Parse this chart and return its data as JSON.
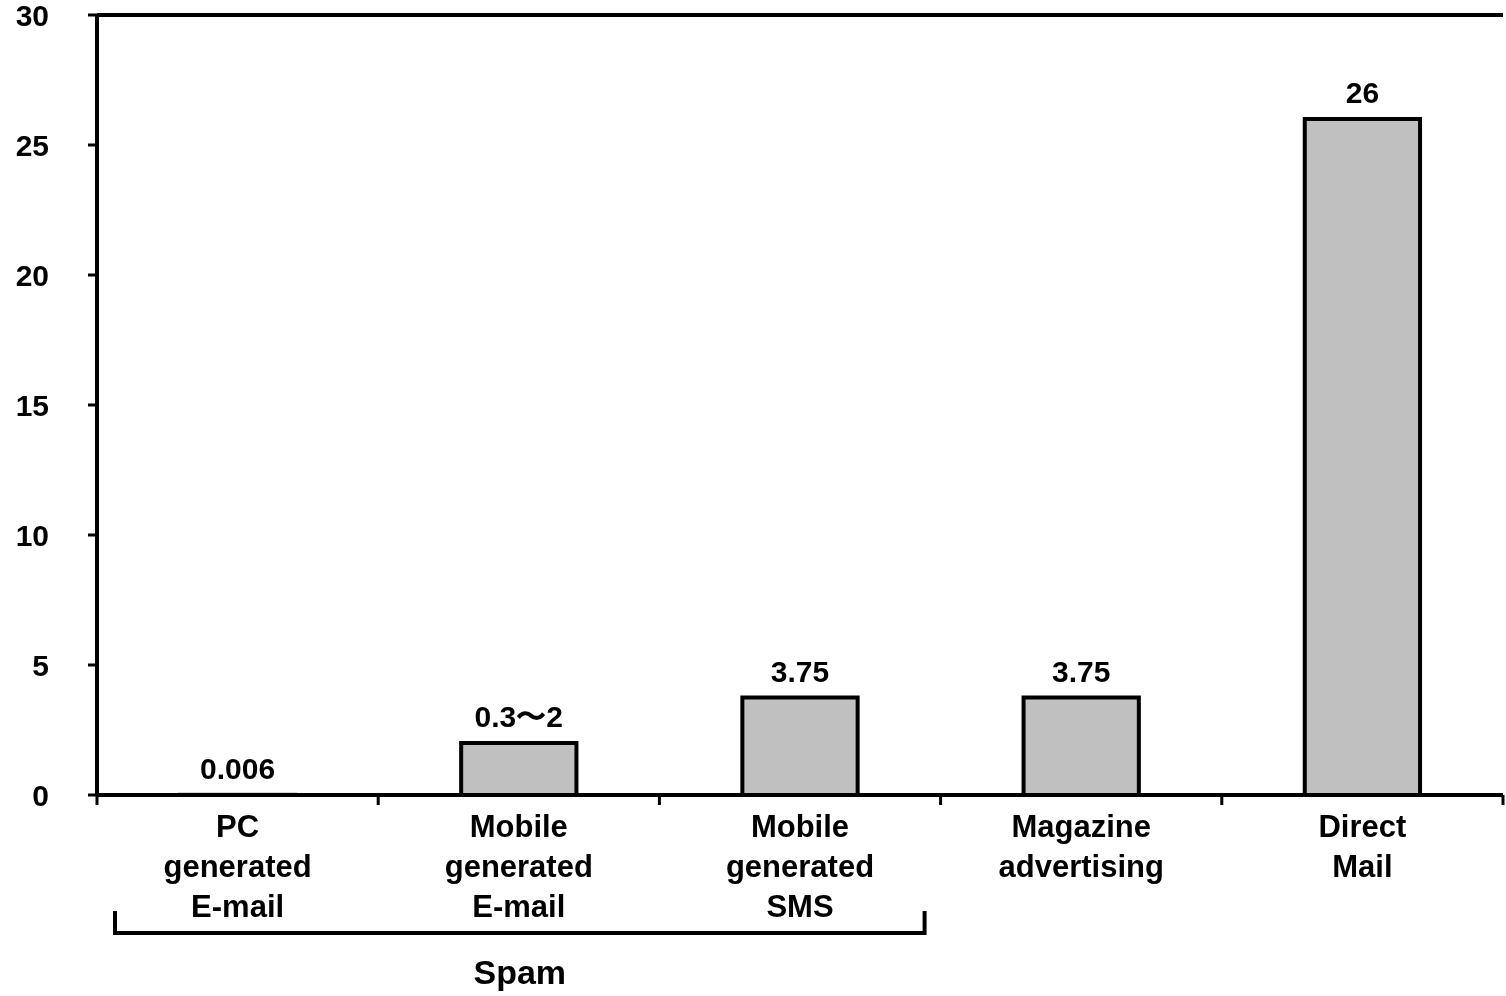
{
  "chart_data": {
    "type": "bar",
    "categories": [
      "PC generated E-mail",
      "Mobile generated E-mail",
      "Mobile generated SMS",
      "Magazine advertising",
      "Direct Mail"
    ],
    "values": [
      0.006,
      2,
      3.75,
      3.75,
      26
    ],
    "value_labels": [
      "0.006",
      "0.3〜2",
      "3.75",
      "3.75",
      "26"
    ],
    "color": "#c0c0c0",
    "ylim": [
      0,
      30
    ],
    "yticks": [
      0,
      5,
      10,
      15,
      20,
      25,
      30
    ],
    "annotations": [
      "Spam"
    ]
  }
}
